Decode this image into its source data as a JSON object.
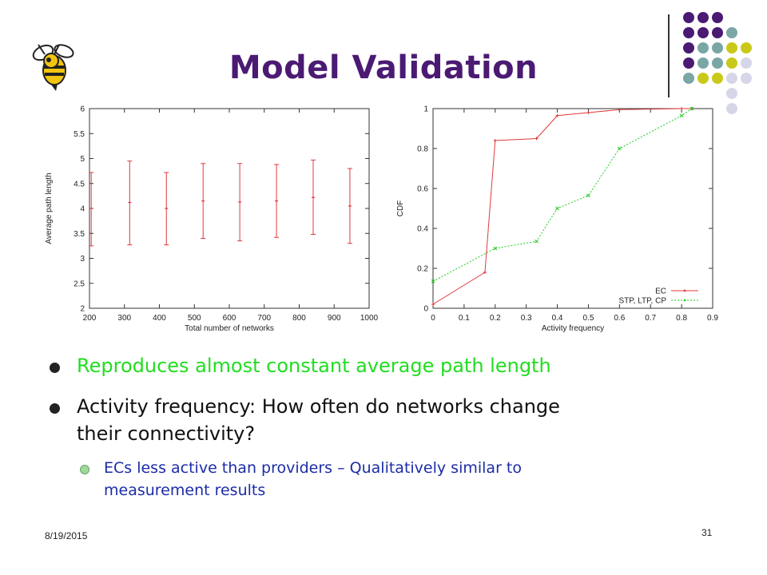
{
  "slide": {
    "title": "Model Validation",
    "date": "8/19/2015",
    "page_number": "31"
  },
  "bullets": [
    {
      "text": "Reproduces almost constant average path length",
      "color": "#22dd22"
    },
    {
      "text": "Activity frequency: How often do networks change their connectivity?",
      "lines": [
        "Activity frequency: How often do networks change",
        "their connectivity?"
      ],
      "color": "#111111"
    }
  ],
  "sub_bullets": [
    {
      "lines": [
        "ECs less active than providers – Qualitatively similar to",
        "measurement results"
      ],
      "color": "#1c2ca8"
    }
  ],
  "decor": {
    "corner_dot_colors": [
      "#4b1a73",
      "#7aa6a6",
      "#c9c919",
      "#d6d6e8"
    ],
    "logo": "yellow-jacket-bee-logo"
  },
  "chart_data": [
    {
      "type": "errorbar",
      "xlabel": "Total number of networks",
      "ylabel": "Average path length",
      "xlim": [
        200,
        1000
      ],
      "ylim": [
        2,
        6
      ],
      "xticks": [
        200,
        300,
        400,
        500,
        600,
        700,
        800,
        900,
        1000
      ],
      "yticks": [
        2,
        2.5,
        3,
        3.5,
        4,
        4.5,
        5,
        5.5,
        6
      ],
      "grid": false,
      "color": "#e0393c",
      "points": [
        {
          "x": 205,
          "y": 4.0,
          "low": 3.25,
          "high": 4.72
        },
        {
          "x": 315,
          "y": 4.12,
          "low": 3.27,
          "high": 4.95
        },
        {
          "x": 420,
          "y": 4.0,
          "low": 3.27,
          "high": 4.72
        },
        {
          "x": 525,
          "y": 4.15,
          "low": 3.4,
          "high": 4.9
        },
        {
          "x": 630,
          "y": 4.13,
          "low": 3.35,
          "high": 4.9
        },
        {
          "x": 735,
          "y": 4.15,
          "low": 3.42,
          "high": 4.88
        },
        {
          "x": 840,
          "y": 4.22,
          "low": 3.48,
          "high": 4.97
        },
        {
          "x": 945,
          "y": 4.05,
          "low": 3.3,
          "high": 4.8
        }
      ]
    },
    {
      "type": "line",
      "xlabel": "Activity frequency",
      "ylabel": "CDF",
      "xlim": [
        0,
        0.9
      ],
      "ylim": [
        0,
        1
      ],
      "xticks": [
        0,
        0.1,
        0.2,
        0.3,
        0.4,
        0.5,
        0.6,
        0.7,
        0.8,
        0.9
      ],
      "yticks": [
        0,
        0.2,
        0.4,
        0.6,
        0.8,
        1
      ],
      "grid": false,
      "legend_position": "bottom-right",
      "series": [
        {
          "name": "EC",
          "color": "#e0393c",
          "style": "solid",
          "marker": "+",
          "x": [
            0,
            0.167,
            0.2,
            0.333,
            0.4,
            0.5,
            0.6,
            0.8,
            0.833
          ],
          "y": [
            0.02,
            0.18,
            0.84,
            0.85,
            0.965,
            0.98,
            0.995,
            1.0,
            1.0
          ]
        },
        {
          "name": "STP, LTP, CP",
          "color": "#22cc22",
          "style": "dashed",
          "marker": "x",
          "x": [
            0,
            0.2,
            0.333,
            0.4,
            0.5,
            0.6,
            0.8,
            0.833
          ],
          "y": [
            0.135,
            0.3,
            0.335,
            0.5,
            0.565,
            0.8,
            0.965,
            1.0
          ]
        }
      ]
    }
  ]
}
